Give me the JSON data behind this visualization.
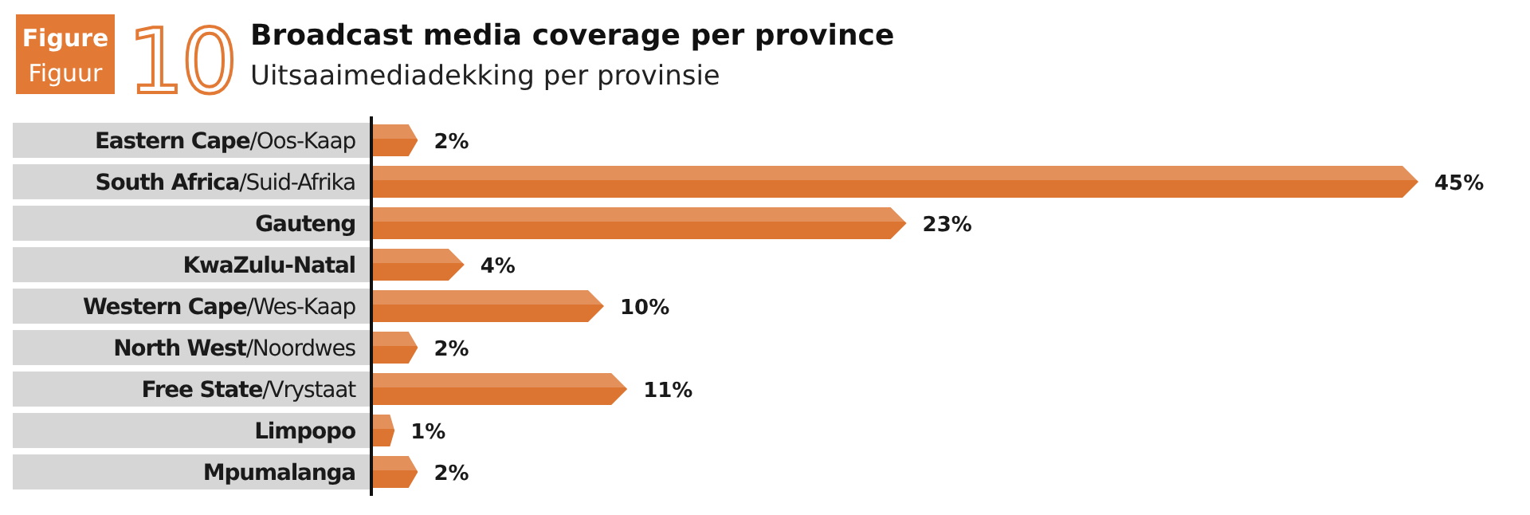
{
  "chart_data": {
    "type": "bar",
    "orientation": "horizontal",
    "title": "Broadcast media coverage per province",
    "subtitle": "Uitsaaimediadekking per provinsie",
    "annotations": [
      "Figure",
      "Figuur",
      "10"
    ],
    "categories": [
      "Eastern Cape/Oos-Kaap",
      "South Africa/Suid-Afrika",
      "Gauteng",
      "KwaZulu-Natal",
      "Western Cape/Wes-Kaap",
      "North West/Noordwes",
      "Free State/Vrystaat",
      "Limpopo",
      "Mpumalanga"
    ],
    "values": [
      2,
      45,
      23,
      4,
      10,
      2,
      11,
      1,
      2
    ],
    "value_labels": [
      "2%",
      "45%",
      "23%",
      "4%",
      "10%",
      "2%",
      "11%",
      "1%",
      "2%"
    ],
    "color": "#dc7432",
    "xlim": [
      0,
      45
    ]
  }
}
